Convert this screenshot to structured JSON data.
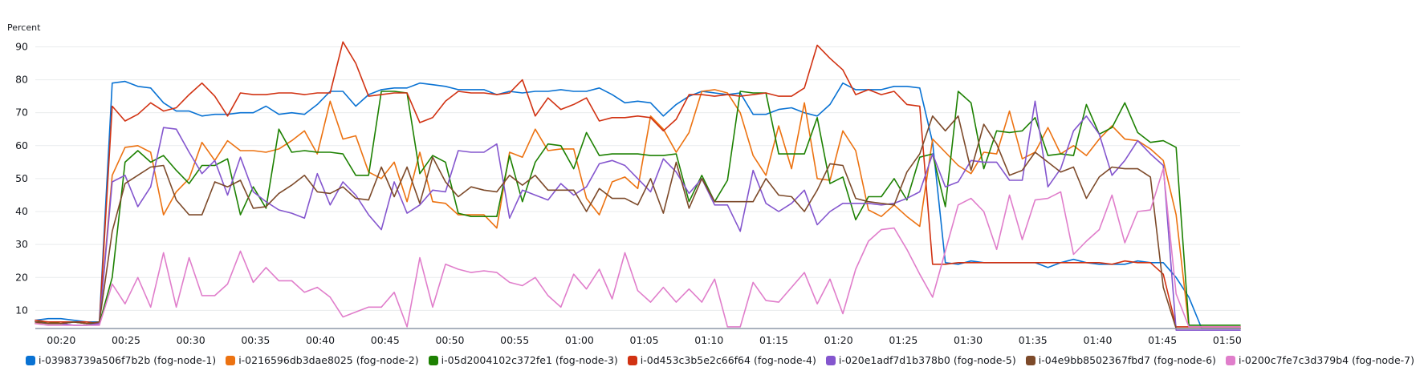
{
  "chart_data": {
    "type": "line",
    "ylabel": "Percent",
    "xlabel": "",
    "ylim": [
      4.5,
      94
    ],
    "yticks": [
      10,
      20,
      30,
      40,
      50,
      60,
      70,
      80,
      90
    ],
    "xticks": [
      "00:20",
      "00:25",
      "00:30",
      "00:35",
      "00:40",
      "00:45",
      "00:50",
      "00:55",
      "01:00",
      "01:05",
      "01:10",
      "01:15",
      "01:20",
      "01:25",
      "01:30",
      "01:35",
      "01:40",
      "01:45",
      "01:50"
    ],
    "xlim": [
      "00:18",
      "01:51"
    ],
    "grid": true,
    "legend_position": "bottom",
    "series": [
      {
        "name": "i-03983739a506f7b2b (fog-node-1)",
        "color": "#0972d3",
        "values": [
          7,
          7.5,
          7.5,
          7,
          6.5,
          6.5,
          79,
          79.5,
          78,
          77.5,
          73,
          70.5,
          70.5,
          69,
          69.5,
          69.5,
          70,
          70,
          72,
          69.5,
          70,
          69.5,
          72.5,
          76.5,
          76.5,
          72,
          75.5,
          77,
          77.5,
          77.5,
          79,
          78.5,
          78,
          77,
          77,
          77,
          75.5,
          76.5,
          76,
          76.5,
          76.5,
          77,
          76.5,
          76.5,
          77.5,
          75.5,
          73,
          73.5,
          73,
          69,
          72.5,
          75,
          76.5,
          76,
          75.5,
          76,
          69.5,
          69.5,
          71,
          71.5,
          70,
          69,
          72.5,
          79,
          77,
          77,
          77,
          78,
          78,
          77.5,
          61,
          24.5,
          24,
          25,
          24.5,
          24.5,
          24.5,
          24.5,
          24.5,
          23,
          24.5,
          25.5,
          24.5,
          24,
          24,
          24,
          25,
          24.5,
          24.5,
          20,
          14,
          4.5,
          4.5,
          4.5,
          4.5
        ]
      },
      {
        "name": "i-0216596db3dae8025 (fog-node-2)",
        "color": "#ec7211",
        "values": [
          6,
          6.5,
          6,
          6.5,
          6,
          6,
          51,
          59.5,
          60,
          58,
          39,
          46,
          50,
          61,
          55.5,
          61.5,
          58.5,
          58.5,
          58,
          59,
          61.5,
          64.5,
          57.5,
          73.5,
          62,
          63,
          52,
          50,
          55,
          43,
          58,
          43,
          42.5,
          39,
          39,
          39,
          35,
          58,
          56.5,
          65,
          58.5,
          59,
          59,
          44,
          39,
          49,
          50.5,
          47,
          69,
          65,
          58,
          64,
          76.5,
          77,
          76,
          70,
          57,
          51,
          66,
          53,
          73,
          50,
          49.5,
          64.5,
          58.5,
          40.5,
          38.5,
          42,
          38.5,
          35.5,
          62,
          58,
          54,
          51.5,
          58,
          57.5,
          70.5,
          56,
          58,
          65.5,
          57.5,
          60,
          57,
          62,
          66,
          62,
          61.5,
          59,
          55.5,
          39,
          5,
          5,
          5,
          5,
          5
        ]
      },
      {
        "name": "i-05d2004102c372fe1 (fog-node-3)",
        "color": "#1d8102",
        "values": [
          6.5,
          6.5,
          6,
          6.5,
          6,
          6,
          20,
          55,
          58.5,
          55,
          57,
          52.5,
          48.5,
          54,
          54,
          56,
          39,
          47.5,
          41,
          65,
          58,
          58.5,
          58,
          58,
          57.5,
          51,
          51,
          76.5,
          76.5,
          76,
          51.5,
          57,
          55,
          39.5,
          38.5,
          38.5,
          38.5,
          57,
          43,
          55,
          60.5,
          60,
          53,
          64,
          57,
          57.5,
          57.5,
          57.5,
          57,
          57,
          57.5,
          43,
          51,
          43,
          49.5,
          76.5,
          76,
          76,
          57.5,
          57.5,
          57.5,
          68.5,
          48.5,
          50.5,
          37.5,
          44.5,
          44.5,
          50,
          43.5,
          56.5,
          57.5,
          41.5,
          76.5,
          73,
          53,
          64.5,
          64,
          64.5,
          68.5,
          57,
          57.5,
          57,
          72.5,
          63.5,
          65.5,
          73,
          64,
          61,
          61.5,
          59.5,
          5.5,
          5.5,
          5.5,
          5.5,
          5.5
        ]
      },
      {
        "name": "i-0d453c3b5e2c66f64 (fog-node-4)",
        "color": "#d13212",
        "values": [
          7,
          6.5,
          6.5,
          6.5,
          6.5,
          6,
          72,
          67.5,
          69.5,
          73,
          70.5,
          71.5,
          75.5,
          79,
          75,
          69,
          76,
          75.5,
          75.5,
          76,
          76,
          75.5,
          76,
          76,
          91.5,
          85,
          75,
          75.5,
          76,
          76,
          67,
          68.5,
          73.5,
          76.5,
          76,
          76,
          75.5,
          76,
          80,
          69,
          74.5,
          71,
          72.5,
          74.5,
          67.5,
          68.5,
          68.5,
          69,
          68.5,
          64.5,
          68,
          75.5,
          75.5,
          75,
          75.5,
          75,
          75.5,
          76,
          75,
          75,
          77.5,
          90.5,
          86.5,
          83,
          75.5,
          77,
          75.5,
          76.5,
          72.5,
          72,
          24,
          24,
          24.5,
          24.5,
          24.5,
          24.5,
          24.5,
          24.5,
          24.5,
          24.5,
          24.5,
          24.5,
          24.5,
          24.5,
          24,
          25,
          24.5,
          24.5,
          21,
          5,
          5,
          5,
          5,
          5,
          5
        ]
      },
      {
        "name": "i-020e1adf7d1b378b0 (fog-node-5)",
        "color": "#8456ce",
        "values": [
          6.5,
          6,
          6,
          5.5,
          5.5,
          6,
          49,
          51,
          41.5,
          47.5,
          65.5,
          65,
          58,
          51.5,
          55.5,
          45,
          56.5,
          46,
          43,
          40.5,
          39.5,
          38,
          51.5,
          42,
          49,
          45,
          39,
          34.5,
          49,
          39.5,
          42,
          46.5,
          46,
          58.5,
          58,
          58,
          60.5,
          38,
          46.5,
          45,
          43.5,
          48.5,
          45,
          47.5,
          54.5,
          55.5,
          54,
          50,
          46,
          56,
          52,
          45.5,
          50,
          42,
          42,
          34,
          52.5,
          42.5,
          40,
          42.5,
          46.5,
          36,
          40,
          42.5,
          42.5,
          42.5,
          42,
          42.5,
          44,
          46,
          57.5,
          47.5,
          49,
          55.5,
          55,
          55,
          49.5,
          49.5,
          73.5,
          47.5,
          53,
          64.5,
          69,
          63.5,
          51,
          55.5,
          61.5,
          57.5,
          54,
          4,
          4,
          4,
          4,
          4,
          4
        ]
      },
      {
        "name": "i-04e9bb8502367fbd7 (fog-node-6)",
        "color": "#7d4a2a",
        "values": [
          6.5,
          6,
          6,
          6.5,
          6,
          6.5,
          34,
          48.5,
          51,
          53.5,
          54,
          43.5,
          39,
          39,
          49,
          47.5,
          49.5,
          41,
          41.5,
          45.5,
          48,
          51,
          46,
          45.5,
          47.5,
          44,
          43.5,
          53.5,
          44.5,
          53.5,
          42.5,
          56.5,
          49,
          44.5,
          47.5,
          46.5,
          46,
          51,
          48,
          51,
          46.5,
          46.5,
          46.5,
          40,
          47,
          44,
          44,
          42,
          50,
          39.5,
          55,
          41,
          50,
          43,
          43,
          43,
          43,
          50,
          45,
          44.5,
          40,
          46.5,
          54.5,
          54,
          44,
          43,
          42.5,
          42,
          52,
          57.5,
          69,
          64.5,
          69,
          52.5,
          66.5,
          60.5,
          51,
          52.5,
          58,
          55,
          52,
          53.5,
          44,
          50.5,
          53.5,
          53,
          53,
          50.5,
          17,
          4.5,
          4.5,
          4.5,
          4.5,
          4.5,
          4.5
        ]
      },
      {
        "name": "i-0200c7fe7c3d379b4 (fog-node-7)",
        "color": "#e07ecb",
        "values": [
          6,
          5.5,
          5.5,
          5.5,
          5.5,
          5.5,
          18,
          12,
          20,
          11,
          27.5,
          11,
          26,
          14.5,
          14.5,
          18,
          28,
          18.5,
          23,
          19,
          19,
          15.5,
          17,
          14,
          8,
          9.5,
          11,
          11,
          15.5,
          5,
          26,
          11,
          24,
          22.5,
          21.5,
          22,
          21.5,
          18.5,
          17.5,
          20,
          14.5,
          11,
          21,
          16.5,
          22.5,
          13.5,
          27.5,
          16,
          12.5,
          17,
          12.5,
          16.5,
          12.5,
          19.5,
          5,
          5,
          18.5,
          13,
          12.5,
          17,
          21.5,
          12,
          19.5,
          9,
          22.5,
          31,
          34.5,
          35,
          28.5,
          21,
          14,
          28,
          42,
          44,
          40,
          28.5,
          45,
          31.5,
          43.5,
          44,
          46,
          27,
          31,
          34.5,
          45,
          30.5,
          40,
          40.5,
          53,
          15,
          5,
          5,
          5,
          5,
          5
        ]
      }
    ]
  }
}
